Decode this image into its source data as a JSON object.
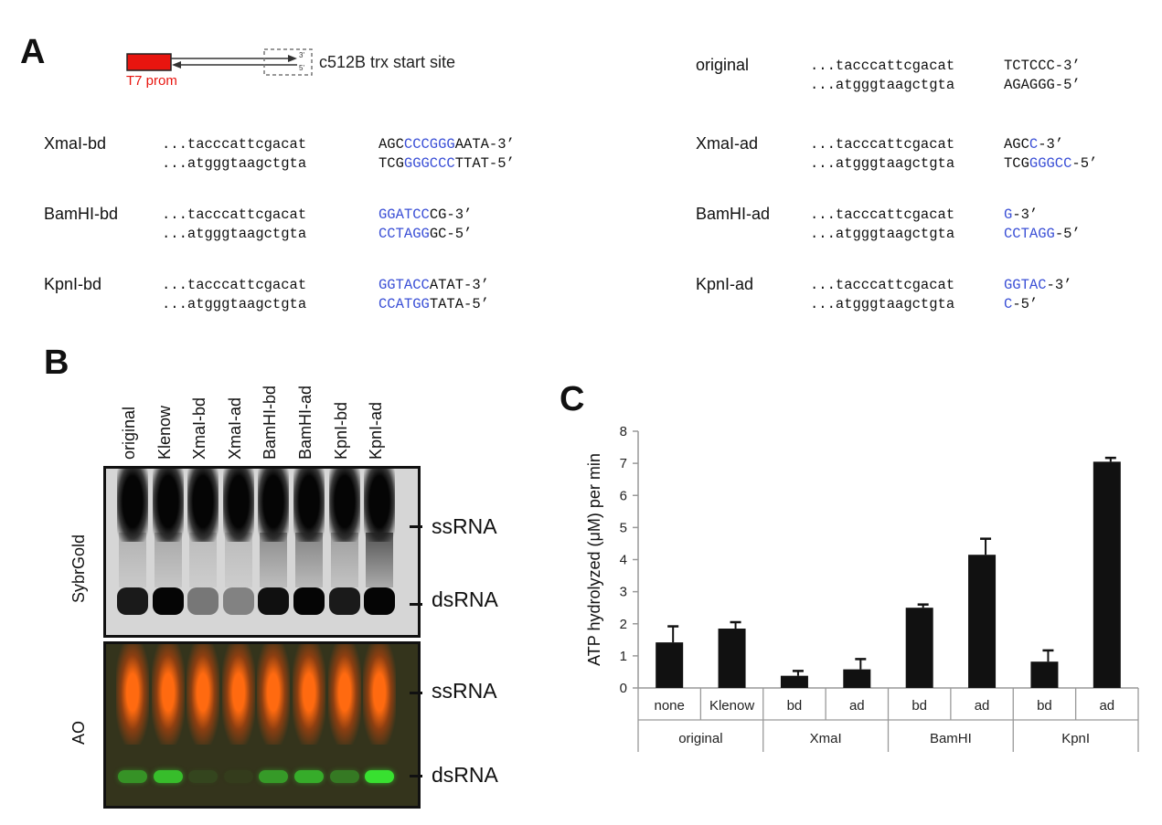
{
  "panelA": {
    "letter": "A",
    "diagram": {
      "promoter_label": "T7 prom",
      "site_label": "c512B trx start site",
      "three_prime": "3'",
      "five_prime": "5'"
    },
    "constructs": [
      {
        "name": "original",
        "top_left": "...tacccattcgacat",
        "bottom_left": "...atgggtaagctgta",
        "top_blue": "",
        "top_black": "TCTCCC-3’",
        "bottom_blue": "",
        "bottom_black": "AGAGGG-5’",
        "top_pre": "",
        "bottom_pre": "",
        "top_blue_mid": "",
        "bottom_blue_mid": ""
      },
      {
        "name": "XmaI-bd",
        "top_left": "...tacccattcgacat",
        "bottom_left": "...atgggtaagctgta",
        "top_pre": "AGC",
        "top_blue_mid": "CCCGGG",
        "top_black": "AATA-3’",
        "bottom_pre": "TCG",
        "bottom_blue_mid": "GGGCCC",
        "bottom_black": "TTAT-5’"
      },
      {
        "name": "XmaI-ad",
        "top_left": "...tacccattcgacat",
        "bottom_left": "...atgggtaagctgta",
        "top_pre": "AGC",
        "top_blue_mid": "C",
        "top_black": "-3’",
        "bottom_pre": "TCG",
        "bottom_blue_mid": "GGGCC",
        "bottom_black": "-5’"
      },
      {
        "name": "BamHI-bd",
        "top_left": "...tacccattcgacat",
        "bottom_left": "...atgggtaagctgta",
        "top_pre": "",
        "top_blue_mid": "GGATCC",
        "top_black": "CG-3’",
        "bottom_pre": "",
        "bottom_blue_mid": "CCTAGG",
        "bottom_black": "GC-5’"
      },
      {
        "name": "BamHI-ad",
        "top_left": "...tacccattcgacat",
        "bottom_left": "...atgggtaagctgta",
        "top_pre": "",
        "top_blue_mid": "G",
        "top_black": "-3’",
        "bottom_pre": "",
        "bottom_blue_mid": "CCTAGG",
        "bottom_black": "-5’"
      },
      {
        "name": "KpnI-bd",
        "top_left": "...tacccattcgacat",
        "bottom_left": "...atgggtaagctgta",
        "top_pre": "",
        "top_blue_mid": "GGTACC",
        "top_black": "ATAT-3’",
        "bottom_pre": "",
        "bottom_blue_mid": "CCATGG",
        "bottom_black": "TATA-5’"
      },
      {
        "name": "KpnI-ad",
        "top_left": "...tacccattcgacat",
        "bottom_left": "...atgggtaagctgta",
        "top_pre": "",
        "top_blue_mid": "GGTAC",
        "top_black": "-3’",
        "bottom_pre": "",
        "bottom_blue_mid": "C",
        "bottom_black": "-5’"
      }
    ]
  },
  "panelB": {
    "letter": "B",
    "lanes": [
      "original",
      "Klenow",
      "XmaI-bd",
      "XmaI-ad",
      "BamHI-bd",
      "BamHI-ad",
      "KpnI-bd",
      "KpnI-ad"
    ],
    "stain_top": "SybrGold",
    "stain_bottom": "AO",
    "band_ss": "ssRNA",
    "band_ds": "dsRNA",
    "colors": {
      "gel_bg_top": "#d8d8d8",
      "band_dark": "#0a0a0a",
      "gel_bg_bottom": "#3a3a22",
      "ao_orange": "#ff6a10",
      "ao_green": "#38e030"
    }
  },
  "panelC": {
    "letter": "C",
    "chart_data": {
      "type": "bar",
      "ylabel": "ATP hydrolyzed (μM)  per min",
      "ylim": [
        0,
        8
      ],
      "yticks": [
        "0",
        "1",
        "2",
        "3",
        "4",
        "5",
        "6",
        "7",
        "8"
      ],
      "groups": [
        "original",
        "XmaI",
        "BamHI",
        "KpnI"
      ],
      "categories": [
        "none",
        "Klenow",
        "bd",
        "ad",
        "bd",
        "ad",
        "bd",
        "ad"
      ],
      "values": [
        1.42,
        1.85,
        0.38,
        0.58,
        2.5,
        4.15,
        0.82,
        7.05
      ],
      "errors": [
        0.5,
        0.2,
        0.15,
        0.32,
        0.1,
        0.5,
        0.35,
        0.12
      ],
      "bar_color": "#111111"
    }
  }
}
